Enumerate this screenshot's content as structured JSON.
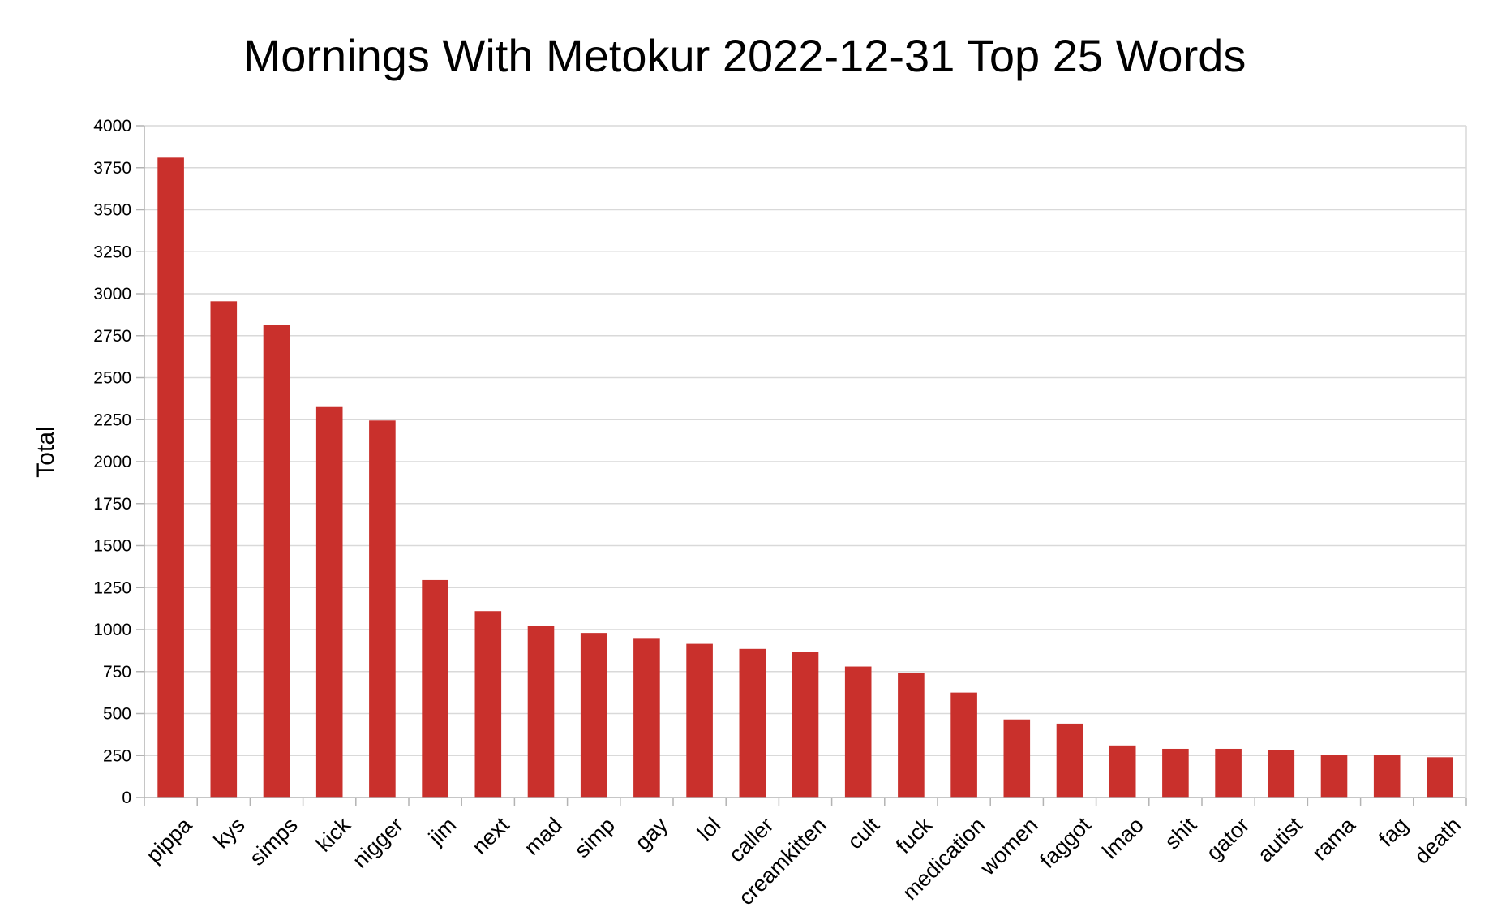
{
  "chart_data": {
    "type": "bar",
    "title": "Mornings With Metokur 2022-12-31 Top 25 Words",
    "xlabel": "",
    "ylabel": "Total",
    "ylim": [
      0,
      4000
    ],
    "ytick_step": 250,
    "grid": true,
    "legend": "none",
    "bar_color": "#c9302c",
    "categories": [
      "pippa",
      "kys",
      "simps",
      "kick",
      "nigger",
      "jim",
      "next",
      "mad",
      "simp",
      "gay",
      "lol",
      "caller",
      "creamkitten",
      "cult",
      "fuck",
      "medication",
      "women",
      "faggot",
      "lmao",
      "shit",
      "gator",
      "autist",
      "rama",
      "fag",
      "death"
    ],
    "values": [
      3810,
      2955,
      2815,
      2325,
      2245,
      1295,
      1110,
      1020,
      980,
      950,
      915,
      885,
      865,
      780,
      740,
      625,
      465,
      440,
      310,
      290,
      290,
      285,
      255,
      255,
      240
    ]
  }
}
